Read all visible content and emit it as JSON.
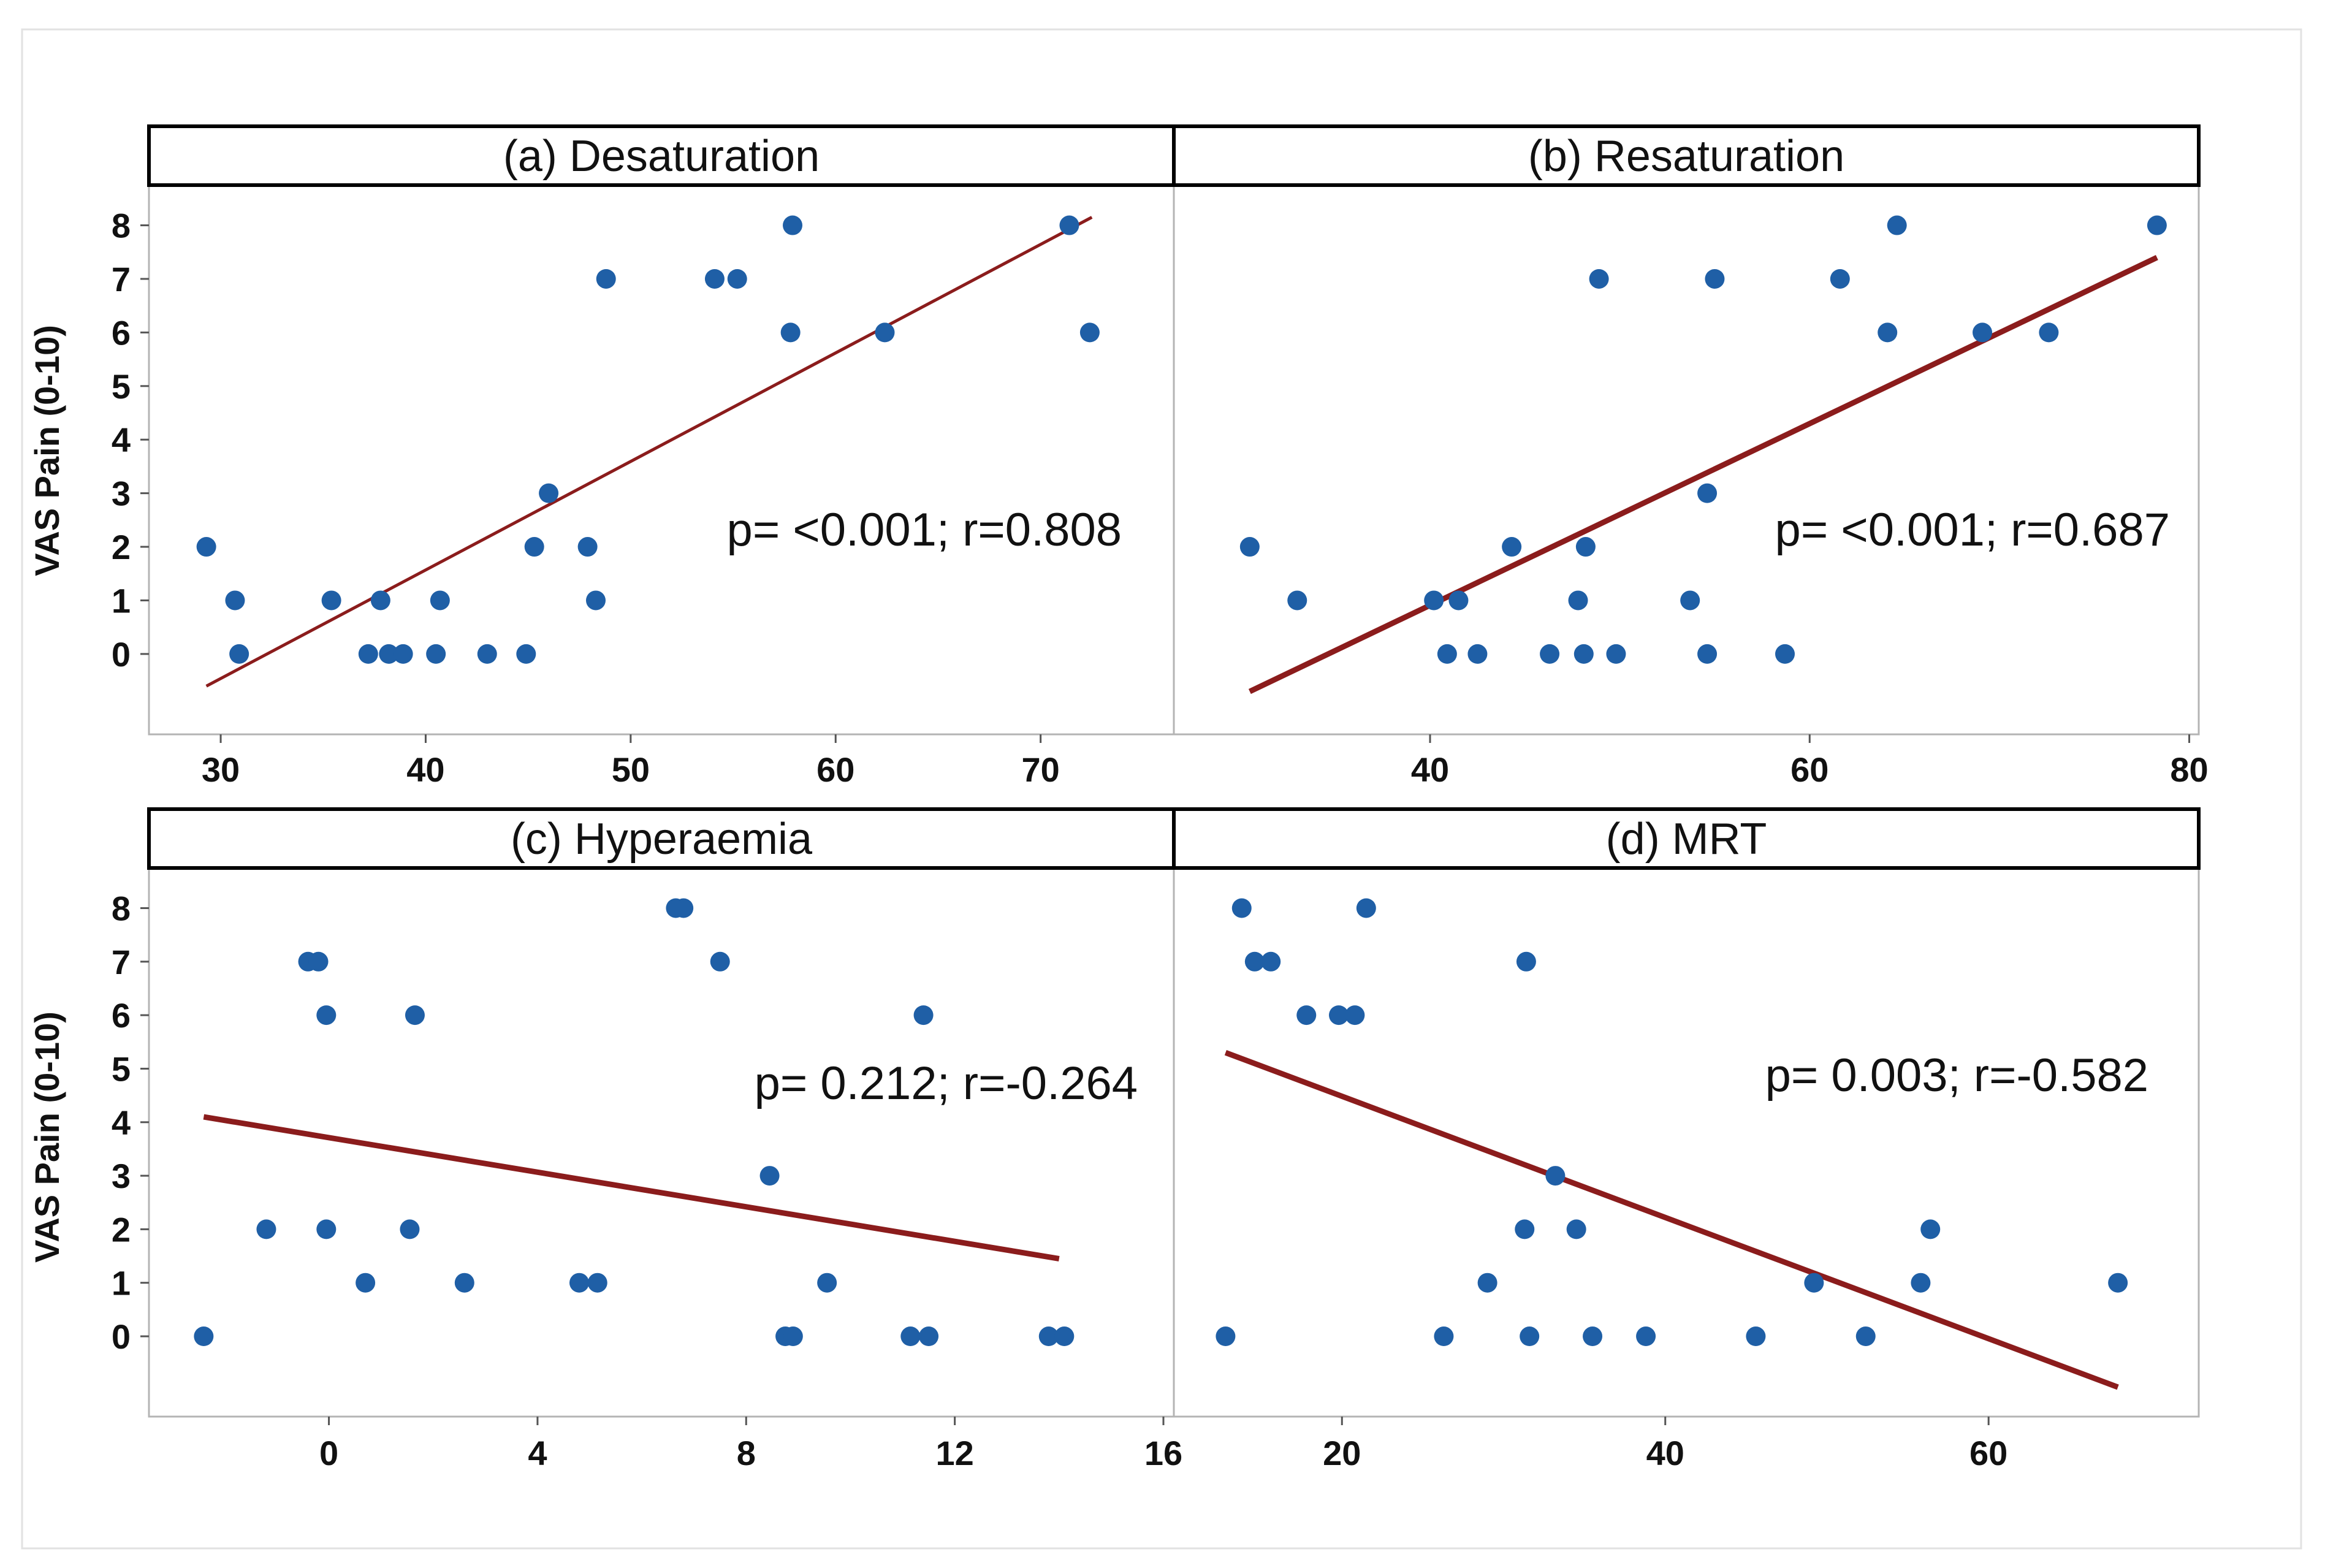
{
  "colors": {
    "point": "#1f5fa6",
    "fit_line": "#8b1c1c",
    "frame": "#000000"
  },
  "chart_data": [
    {
      "type": "scatter",
      "title": "(a) Desaturation",
      "ylabel": "VAS Pain (0-10)",
      "xlabel": "",
      "xlim": [
        26.5,
        76.5
      ],
      "ylim": [
        -1.5,
        8.75
      ],
      "xticks": [
        30,
        40,
        50,
        60,
        70
      ],
      "yticks": [
        0,
        1,
        2,
        3,
        4,
        5,
        6,
        7,
        8
      ],
      "annotation": "p= <0.001; r=0.808",
      "fit_line": [
        [
          29.3,
          -0.6
        ],
        [
          72.5,
          8.15
        ]
      ],
      "points": [
        [
          29.3,
          2
        ],
        [
          30.7,
          1
        ],
        [
          30.9,
          0
        ],
        [
          35.4,
          1
        ],
        [
          37.2,
          0
        ],
        [
          37.8,
          1
        ],
        [
          38.2,
          0
        ],
        [
          38.9,
          0
        ],
        [
          40.5,
          0
        ],
        [
          40.7,
          1
        ],
        [
          43,
          0
        ],
        [
          44.9,
          0
        ],
        [
          45.3,
          2
        ],
        [
          46,
          3
        ],
        [
          47.9,
          2
        ],
        [
          48.3,
          1
        ],
        [
          48.8,
          7
        ],
        [
          54.1,
          7
        ],
        [
          55.2,
          7
        ],
        [
          57.8,
          6
        ],
        [
          57.9,
          8
        ],
        [
          62.4,
          6
        ],
        [
          71.4,
          8
        ],
        [
          72.4,
          6
        ]
      ]
    },
    {
      "type": "scatter",
      "title": "(b) Resaturation",
      "ylabel": "",
      "xlabel": "",
      "xlim": [
        26.5,
        80.5
      ],
      "ylim": [
        -1.5,
        8.75
      ],
      "xticks": [
        40,
        60,
        80
      ],
      "yticks": [
        0,
        1,
        2,
        3,
        4,
        5,
        6,
        7,
        8
      ],
      "annotation": "p= <0.001; r=0.687",
      "fit_line": [
        [
          30.5,
          -0.7
        ],
        [
          78.3,
          7.4
        ]
      ],
      "points": [
        [
          30.5,
          2
        ],
        [
          33,
          1
        ],
        [
          40.2,
          1
        ],
        [
          40.9,
          0
        ],
        [
          41.5,
          1
        ],
        [
          42.5,
          0
        ],
        [
          44.3,
          2
        ],
        [
          46.3,
          0
        ],
        [
          47.8,
          1
        ],
        [
          48.1,
          0
        ],
        [
          48.2,
          2
        ],
        [
          48.9,
          7
        ],
        [
          49.8,
          0
        ],
        [
          53.7,
          1
        ],
        [
          54.6,
          3
        ],
        [
          54.6,
          0
        ],
        [
          55,
          7
        ],
        [
          58.7,
          0
        ],
        [
          61.6,
          7
        ],
        [
          64.1,
          6
        ],
        [
          64.6,
          8
        ],
        [
          69.1,
          6
        ],
        [
          72.6,
          6
        ],
        [
          78.3,
          8
        ]
      ]
    },
    {
      "type": "scatter",
      "title": "(c) Hyperaemia",
      "ylabel": "VAS Pain (0-10)",
      "xlabel": "",
      "xlim": [
        -3.45,
        16.2
      ],
      "ylim": [
        -1.5,
        8.75
      ],
      "xticks": [
        0,
        4,
        8,
        12,
        16
      ],
      "yticks": [
        0,
        1,
        2,
        3,
        4,
        5,
        6,
        7,
        8
      ],
      "annotation": "p= 0.212; r=-0.264",
      "fit_line": [
        [
          -2.4,
          4.1
        ],
        [
          14,
          1.45
        ]
      ],
      "points": [
        [
          -2.4,
          0
        ],
        [
          -1.2,
          2
        ],
        [
          -0.4,
          7
        ],
        [
          -0.2,
          7
        ],
        [
          -0.05,
          6
        ],
        [
          -0.05,
          2
        ],
        [
          0.7,
          1
        ],
        [
          1.55,
          2
        ],
        [
          1.65,
          6
        ],
        [
          2.6,
          1
        ],
        [
          4.8,
          1
        ],
        [
          5.15,
          1
        ],
        [
          6.65,
          8
        ],
        [
          6.8,
          8
        ],
        [
          7.5,
          7
        ],
        [
          8.45,
          3
        ],
        [
          8.75,
          0
        ],
        [
          8.9,
          0
        ],
        [
          9.55,
          1
        ],
        [
          11.15,
          0
        ],
        [
          11.4,
          6
        ],
        [
          11.5,
          0
        ],
        [
          13.8,
          0
        ],
        [
          14.1,
          0
        ]
      ]
    },
    {
      "type": "scatter",
      "title": "(d) MRT",
      "ylabel": "",
      "xlabel": "",
      "xlim": [
        9.6,
        73
      ],
      "ylim": [
        -1.5,
        8.75
      ],
      "xticks": [
        20,
        40,
        60
      ],
      "yticks": [
        0,
        1,
        2,
        3,
        4,
        5,
        6,
        7,
        8
      ],
      "annotation": "p= 0.003; r=-0.582",
      "fit_line": [
        [
          12.8,
          5.3
        ],
        [
          68,
          -0.95
        ]
      ],
      "points": [
        [
          12.8,
          0
        ],
        [
          13.8,
          8
        ],
        [
          14.6,
          7
        ],
        [
          15.6,
          7
        ],
        [
          17.8,
          6
        ],
        [
          19.8,
          6
        ],
        [
          20.8,
          6
        ],
        [
          21.5,
          8
        ],
        [
          26.3,
          0
        ],
        [
          29,
          1
        ],
        [
          31.3,
          2
        ],
        [
          31.4,
          7
        ],
        [
          31.6,
          0
        ],
        [
          33.2,
          3
        ],
        [
          34.5,
          2
        ],
        [
          35.5,
          0
        ],
        [
          38.8,
          0
        ],
        [
          45.6,
          0
        ],
        [
          49.2,
          1
        ],
        [
          52.4,
          0
        ],
        [
          55.8,
          1
        ],
        [
          56.4,
          2
        ],
        [
          68,
          1
        ]
      ]
    }
  ]
}
